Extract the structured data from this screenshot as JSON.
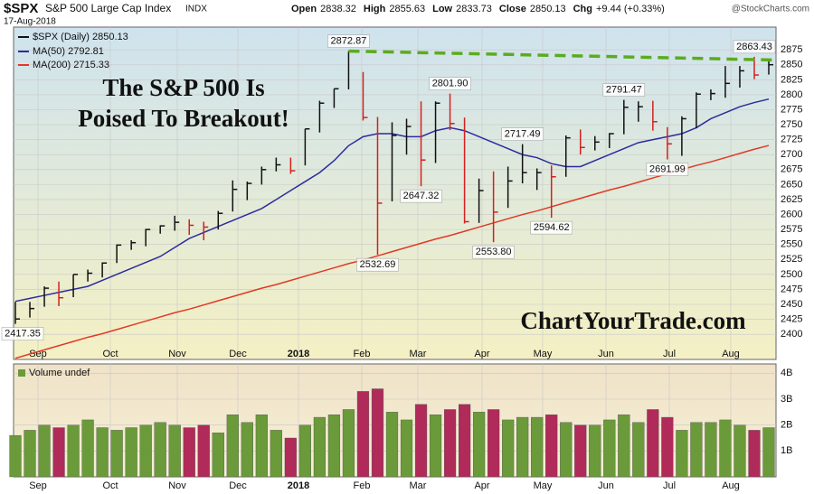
{
  "chart_data": {
    "type": "ohlc",
    "title": "$SPX",
    "subtitle": "S&P 500 Large Cap Index",
    "exchange": "INDX",
    "date": "17-Aug-2018",
    "source": "@StockCharts.com",
    "quote": [
      {
        "name": "Open",
        "text": "2838.32"
      },
      {
        "name": "High",
        "text": "2855.63"
      },
      {
        "name": "Low",
        "text": "2833.73"
      },
      {
        "name": "Close",
        "text": "2850.13"
      },
      {
        "name": "Chg",
        "text": "+9.44 (+0.33%)"
      }
    ],
    "headline": [
      "The S&P 500 Is",
      "Poised To Breakout!"
    ],
    "watermark": "ChartYourTrade.com",
    "price": {
      "name": "$SPX (Daily) 2850.13",
      "up_color": "#111111",
      "down_color": "#d42020",
      "close": [
        2425.55,
        2443,
        2477,
        2461,
        2500,
        2502,
        2519,
        2549,
        2553,
        2575,
        2581,
        2587,
        2582,
        2579,
        2602,
        2642,
        2652,
        2675,
        2683,
        2673,
        2743,
        2786,
        2810,
        2872,
        2762,
        2619,
        2732,
        2747,
        2691,
        2786,
        2752,
        2588,
        2640,
        2604,
        2656,
        2670,
        2670,
        2663,
        2728,
        2712,
        2721,
        2735,
        2779,
        2780,
        2755,
        2718,
        2760,
        2801,
        2802,
        2819,
        2840,
        2833,
        2850.13
      ],
      "high": [
        2454,
        2454,
        2480,
        2488,
        2500,
        2508,
        2520,
        2550,
        2557,
        2576,
        2582,
        2598,
        2592,
        2588,
        2606,
        2657,
        2655,
        2680,
        2695,
        2695,
        2743,
        2790,
        2810,
        2872.87,
        2838,
        2763,
        2754,
        2760,
        2789,
        2789,
        2801.9,
        2762,
        2660,
        2672,
        2680,
        2717.49,
        2677,
        2682,
        2732,
        2742,
        2731,
        2736,
        2791.47,
        2789,
        2790,
        2746,
        2764,
        2804,
        2809,
        2848,
        2848,
        2863.43,
        2855.63
      ],
      "low": [
        2417.35,
        2428,
        2446,
        2447,
        2462,
        2488,
        2495,
        2519,
        2541,
        2547,
        2568,
        2573,
        2566,
        2557,
        2575,
        2605,
        2624,
        2650,
        2672,
        2668,
        2682,
        2737,
        2778,
        2809,
        2757,
        2532.69,
        2622,
        2700,
        2647.32,
        2686,
        2741,
        2585,
        2586,
        2553.8,
        2611,
        2652,
        2641,
        2594.62,
        2663,
        2700,
        2707,
        2711,
        2734,
        2755,
        2740,
        2691.99,
        2698,
        2744,
        2791,
        2795,
        2812,
        2826,
        2833.73
      ]
    },
    "series": [
      {
        "name": "MA(50) 2792.81",
        "color": "#2c2c9c",
        "values": [
          2455,
          2460,
          2465,
          2470,
          2475,
          2480,
          2490,
          2500,
          2510,
          2520,
          2530,
          2545,
          2560,
          2570,
          2580,
          2590,
          2600,
          2610,
          2625,
          2640,
          2655,
          2670,
          2690,
          2715,
          2730,
          2735,
          2735,
          2730,
          2730,
          2740,
          2745,
          2740,
          2730,
          2720,
          2710,
          2700,
          2695,
          2685,
          2680,
          2680,
          2690,
          2700,
          2710,
          2720,
          2725,
          2730,
          2735,
          2745,
          2760,
          2770,
          2780,
          2787,
          2792.81
        ]
      },
      {
        "name": "MA(200) 2715.33",
        "color": "#e03a26",
        "values": [
          2360,
          2367,
          2374,
          2381,
          2388,
          2395,
          2401,
          2408,
          2415,
          2422,
          2429,
          2436,
          2442,
          2449,
          2456,
          2463,
          2470,
          2477,
          2483,
          2490,
          2497,
          2504,
          2511,
          2518,
          2524,
          2531,
          2538,
          2545,
          2552,
          2559,
          2565,
          2572,
          2579,
          2586,
          2593,
          2600,
          2606,
          2613,
          2620,
          2627,
          2634,
          2641,
          2647,
          2654,
          2661,
          2668,
          2675,
          2682,
          2688,
          2695,
          2702,
          2709,
          2715.33
        ]
      }
    ],
    "trendline": {
      "color": "#5aac1e",
      "values": [
        2872.87,
        2858
      ]
    },
    "annotations": [
      {
        "value": 2872.87,
        "label": "2872.87"
      },
      {
        "value": 2801.9,
        "label": "2801.90"
      },
      {
        "value": 2717.49,
        "label": "2717.49"
      },
      {
        "value": 2791.47,
        "label": "2791.47"
      },
      {
        "value": 2863.43,
        "label": "2863.43"
      },
      {
        "value": 2417.35,
        "label": "2417.35"
      },
      {
        "value": 2532.69,
        "label": "2532.69"
      },
      {
        "value": 2647.32,
        "label": "2647.32"
      },
      {
        "value": 2553.8,
        "label": "2553.80"
      },
      {
        "value": 2594.62,
        "label": "2594.62"
      },
      {
        "value": 2691.99,
        "label": "2691.99"
      }
    ],
    "ylim": [
      2358,
      2913
    ],
    "yticks": [
      2400,
      2425,
      2450,
      2475,
      2500,
      2525,
      2550,
      2575,
      2600,
      2625,
      2650,
      2675,
      2700,
      2725,
      2750,
      2775,
      2800,
      2825,
      2850,
      2875
    ],
    "x_tick_labels": [
      "Sep",
      "Oct",
      "Nov",
      "Dec",
      "2018",
      "Feb",
      "Mar",
      "Apr",
      "May",
      "Jun",
      "Jul",
      "Aug"
    ],
    "volume": {
      "name": "Volume undef",
      "up_color": "#6a9a3a",
      "down_color": "#b02a5a",
      "values": [
        1.6,
        1.8,
        2.0,
        1.9,
        2.0,
        2.2,
        1.9,
        1.8,
        1.9,
        2.0,
        2.1,
        2.0,
        1.9,
        2.0,
        1.7,
        2.4,
        2.1,
        2.4,
        1.8,
        1.5,
        2.0,
        2.3,
        2.4,
        2.6,
        3.3,
        3.4,
        2.5,
        2.2,
        2.8,
        2.4,
        2.6,
        2.8,
        2.5,
        2.6,
        2.2,
        2.3,
        2.3,
        2.4,
        2.1,
        2.0,
        2.0,
        2.2,
        2.4,
        2.1,
        2.6,
        2.3,
        1.8,
        2.1,
        2.1,
        2.2,
        2.0,
        1.8,
        1.9
      ],
      "ylim": [
        0,
        4.36
      ],
      "yticks": [
        {
          "value": 1,
          "label": "1B"
        },
        {
          "value": 2,
          "label": "2B"
        },
        {
          "value": 3,
          "label": "3B"
        },
        {
          "value": 4,
          "label": "4B"
        }
      ]
    },
    "grid": true
  }
}
